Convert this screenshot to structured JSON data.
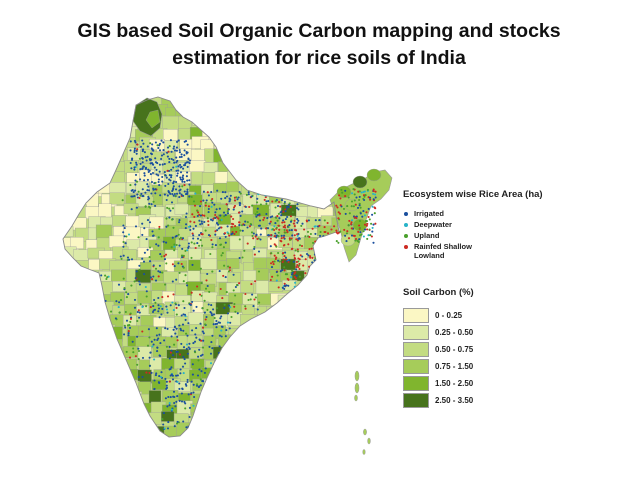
{
  "title_lines": [
    "GIS based Soil Organic Carbon mapping and stocks",
    "estimation for rice soils of India"
  ],
  "ecosystem_legend": {
    "title": "Ecosystem wise Rice Area (ha)",
    "items": [
      {
        "label": "Irrigated",
        "color": "#1a4f9e"
      },
      {
        "label": "Deepwater",
        "color": "#27b3c8"
      },
      {
        "label": "Upland",
        "color": "#4aa02c"
      },
      {
        "label": "Rainfed Shallow Lowland",
        "color": "#cc2a22"
      }
    ]
  },
  "soil_carbon_legend": {
    "title": "Soil Carbon (%)",
    "classes": [
      {
        "label": "0 - 0.25",
        "color": "#fbf7c4"
      },
      {
        "label": "0.25 - 0.50",
        "color": "#dceaa8"
      },
      {
        "label": "0.50 - 0.75",
        "color": "#c3dc82"
      },
      {
        "label": "0.75 - 1.50",
        "color": "#a6cc5a"
      },
      {
        "label": "1.50 - 2.50",
        "color": "#80b52e"
      },
      {
        "label": "2.50 - 3.50",
        "color": "#47731c"
      }
    ]
  },
  "map_colors": {
    "border": "#9a9a9a",
    "land_base": "#c3dc82"
  }
}
